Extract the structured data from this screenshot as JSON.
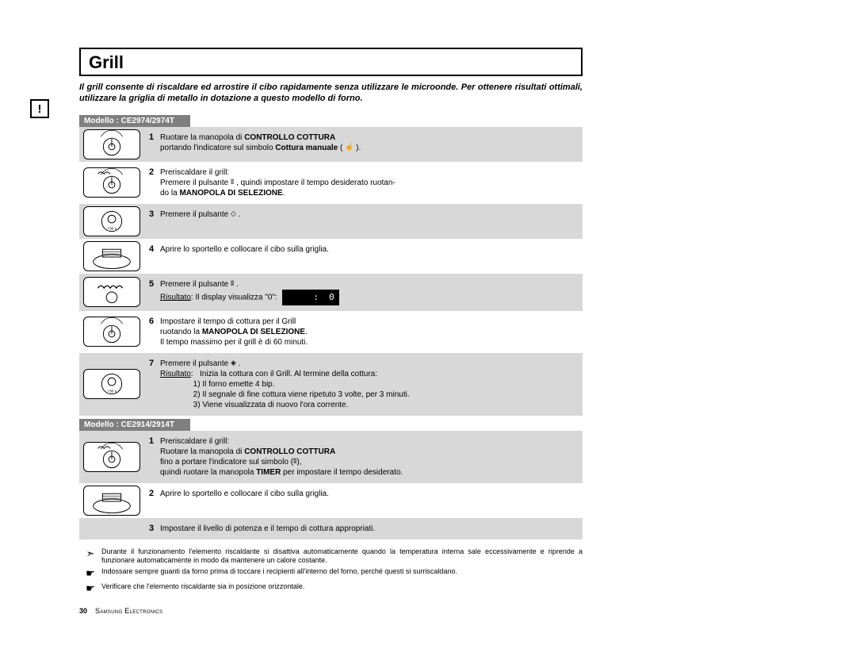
{
  "colors": {
    "page_bg": "#ffffff",
    "text": "#000000",
    "shade": "#d8d8d8",
    "model_header_bg": "#7f7f7f",
    "model_header_text": "#ffffff",
    "border": "#000000",
    "display_bg": "#000000",
    "display_text": "#ffffff"
  },
  "side_icon_glyph": "!",
  "title": "Grill",
  "intro": "Il grill consente di riscaldare ed arrostire il cibo rapidamente senza utilizzare le microonde. Per ottenere risultati ottimali, utilizzare la griglia di metallo in dotazione a questo modello di forno.",
  "model_a": {
    "header": "Modello : CE2974/2974T",
    "steps": [
      {
        "n": "1",
        "icon": "dial-controllo",
        "lines": [
          {
            "t": "Ruotare la manopola di ",
            "a": ""
          },
          {
            "t": "CONTROLLO COTTURA",
            "a": "b"
          }
        ],
        "lines2": [
          {
            "t": "portando l'indicatore sul simbolo ",
            "a": ""
          },
          {
            "t": "Cottura manuale",
            "a": "b"
          },
          {
            "t": " ( ",
            "a": ""
          },
          {
            "t": "☝",
            "a": "icon"
          },
          {
            "t": " ).",
            "a": ""
          }
        ]
      },
      {
        "n": "2",
        "icon": "dial-selezione-grill",
        "lines": [
          {
            "t": "Preriscaldare il grill:",
            "a": ""
          }
        ],
        "lines2": [
          {
            "t": "Premere il pulsante ",
            "a": ""
          },
          {
            "t": "ʬ",
            "a": "icon"
          },
          {
            "t": " , quindi impostare il tempo desiderato ruotan-",
            "a": ""
          }
        ],
        "lines3": [
          {
            "t": "do la ",
            "a": ""
          },
          {
            "t": "MANOPOLA DI SELEZIONE",
            "a": "b"
          },
          {
            "t": ".",
            "a": ""
          }
        ]
      },
      {
        "n": "3",
        "icon": "button-start-30s",
        "lines": [
          {
            "t": "Premere il pulsante ",
            "a": ""
          },
          {
            "t": "◇",
            "a": "icon"
          },
          {
            "t": " .",
            "a": ""
          }
        ]
      },
      {
        "n": "4",
        "icon": "open-door-rack",
        "lines": [
          {
            "t": "Aprire lo sportello e collocare il cibo sulla griglia.",
            "a": ""
          }
        ]
      },
      {
        "n": "5",
        "icon": "button-grill",
        "lines": [
          {
            "t": "Premere il pulsante ",
            "a": ""
          },
          {
            "t": "ʬ",
            "a": "icon"
          },
          {
            "t": " .",
            "a": ""
          }
        ],
        "lines2": [
          {
            "t": "Risultato",
            "a": "u"
          },
          {
            "t": ": Il display visualizza \"0\":",
            "a": ""
          }
        ],
        "display": ":  0"
      },
      {
        "n": "6",
        "icon": "dial-selezione",
        "lines": [
          {
            "t": "Impostare il tempo di cottura per il Grill",
            "a": ""
          }
        ],
        "lines2": [
          {
            "t": "ruotando la ",
            "a": ""
          },
          {
            "t": "MANOPOLA DI SELEZIONE",
            "a": "b"
          },
          {
            "t": ".",
            "a": ""
          }
        ],
        "lines3": [
          {
            "t": "Il tempo massimo per il grill è di 60 minuti.",
            "a": ""
          }
        ]
      },
      {
        "n": "7",
        "icon": "button-start-30s",
        "lines": [
          {
            "t": "Premere il pulsante ",
            "a": ""
          },
          {
            "t": "◈",
            "a": "icon"
          },
          {
            "t": " .",
            "a": ""
          }
        ],
        "lines2": [
          {
            "t": "Risultato",
            "a": "u"
          },
          {
            "t": ":   Inizia la cottura con il Grill. Al termine della cottura:",
            "a": ""
          }
        ],
        "lines3": [
          {
            "t": "               1) Il forno emette 4 bip.",
            "a": ""
          }
        ],
        "lines4": [
          {
            "t": "               2) Il segnale di fine cottura viene ripetuto 3 volte, per 3 minuti.",
            "a": ""
          }
        ],
        "lines5": [
          {
            "t": "               3) Viene visualizzata di nuovo l'ora corrente.",
            "a": ""
          }
        ]
      }
    ]
  },
  "model_b": {
    "header": "Modello : CE2914/2914T",
    "steps": [
      {
        "n": "1",
        "icon": "dial-timer-grill",
        "lines": [
          {
            "t": "Preriscaldare il grill:",
            "a": ""
          }
        ],
        "lines2": [
          {
            "t": "Ruotare la manopola di ",
            "a": ""
          },
          {
            "t": "CONTROLLO COTTURA",
            "a": "b"
          }
        ],
        "lines3": [
          {
            "t": "fino a portare l'indicatore sul simbolo (",
            "a": ""
          },
          {
            "t": "ʬ",
            "a": "icon"
          },
          {
            "t": "),",
            "a": ""
          }
        ],
        "lines4": [
          {
            "t": "quindi ruotare la manopola ",
            "a": ""
          },
          {
            "t": "TIMER",
            "a": "b"
          },
          {
            "t": " per impostare il tempo desiderato.",
            "a": ""
          }
        ]
      },
      {
        "n": "2",
        "icon": "open-door-rack",
        "lines": [
          {
            "t": "Aprire lo sportello e collocare il cibo sulla griglia.",
            "a": ""
          }
        ]
      },
      {
        "n": "3",
        "icon": "",
        "lines": [
          {
            "t": "Impostare il livello di potenza e il tempo di cottura appropriati.",
            "a": ""
          }
        ]
      }
    ]
  },
  "notes": [
    {
      "icon": "➣",
      "text": "Durante il funzionamento l'elemento riscaldante si disattiva automaticamente quando la temperatura interna sale eccessivamente e riprende a funzionare automaticamente in modo da mantenere un calore costante."
    },
    {
      "icon": "☛",
      "text": "Indossare sempre guanti da forno prima di toccare i recipienti all'interno del forno, perché questi si surriscaldano."
    },
    {
      "icon": "☛",
      "text": "Verificare che l'elemento riscaldante sia in posizione orizzontale."
    }
  ],
  "footer": {
    "page": "30",
    "company": "Samsung Electronics"
  }
}
